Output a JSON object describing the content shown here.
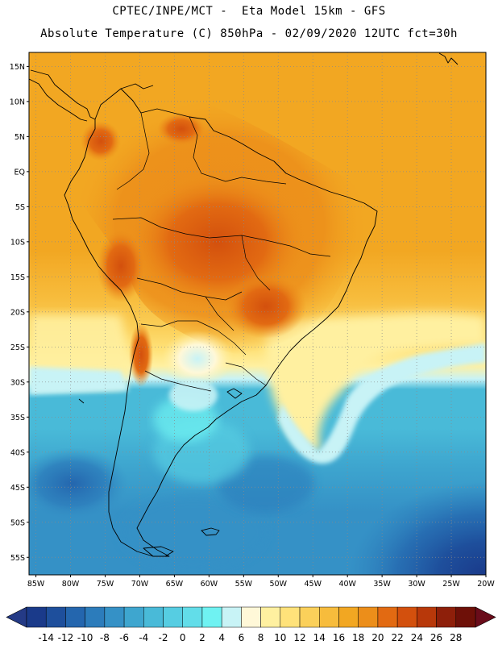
{
  "header": {
    "line1": "CPTEC/INPE/MCT -  Eta Model 15km - GFS",
    "line2": "Absolute Temperature (C) 850hPa - 02/09/2020 12UTC fct=30h"
  },
  "map": {
    "lat_labels": [
      "15N",
      "10N",
      "5N",
      "EQ",
      "5S",
      "10S",
      "15S",
      "20S",
      "25S",
      "30S",
      "35S",
      "40S",
      "45S",
      "50S",
      "55S"
    ],
    "lon_labels": [
      "85W",
      "80W",
      "75W",
      "70W",
      "65W",
      "60W",
      "55W",
      "50W",
      "45W",
      "40W",
      "35W",
      "30W",
      "25W",
      "20W"
    ],
    "lat_values": [
      15,
      10,
      5,
      0,
      -5,
      -10,
      -15,
      -20,
      -25,
      -30,
      -35,
      -40,
      -45,
      -50,
      -55
    ],
    "lon_values": [
      -85,
      -80,
      -75,
      -70,
      -65,
      -60,
      -55,
      -50,
      -45,
      -40,
      -35,
      -30,
      -25,
      -20
    ],
    "lat_range": [
      -57.5,
      17
    ],
    "lon_range": [
      -86,
      -20
    ],
    "grid": "dotted"
  },
  "colorbar": {
    "labels": [
      "-14",
      "-12",
      "-10",
      "-8",
      "-6",
      "-4",
      "-2",
      "0",
      "2",
      "4",
      "6",
      "8",
      "10",
      "12",
      "14",
      "16",
      "18",
      "20",
      "22",
      "24",
      "26",
      "28"
    ],
    "colors": [
      "#1a3a8a",
      "#1e4f9c",
      "#2466ae",
      "#2c7cbb",
      "#3591c6",
      "#3ea6cf",
      "#49bad8",
      "#56cde2",
      "#62dde9",
      "#6ff2f2",
      "#c8f3f6",
      "#fff8d8",
      "#fff0a0",
      "#ffe27a",
      "#fbd05a",
      "#f7bc3c",
      "#f2a722",
      "#ec8e1a",
      "#e26a12",
      "#d3500d",
      "#b8380a",
      "#8e1f0a",
      "#6e1008"
    ],
    "under_color": "#243a86",
    "over_color": "#6a0c1a"
  }
}
